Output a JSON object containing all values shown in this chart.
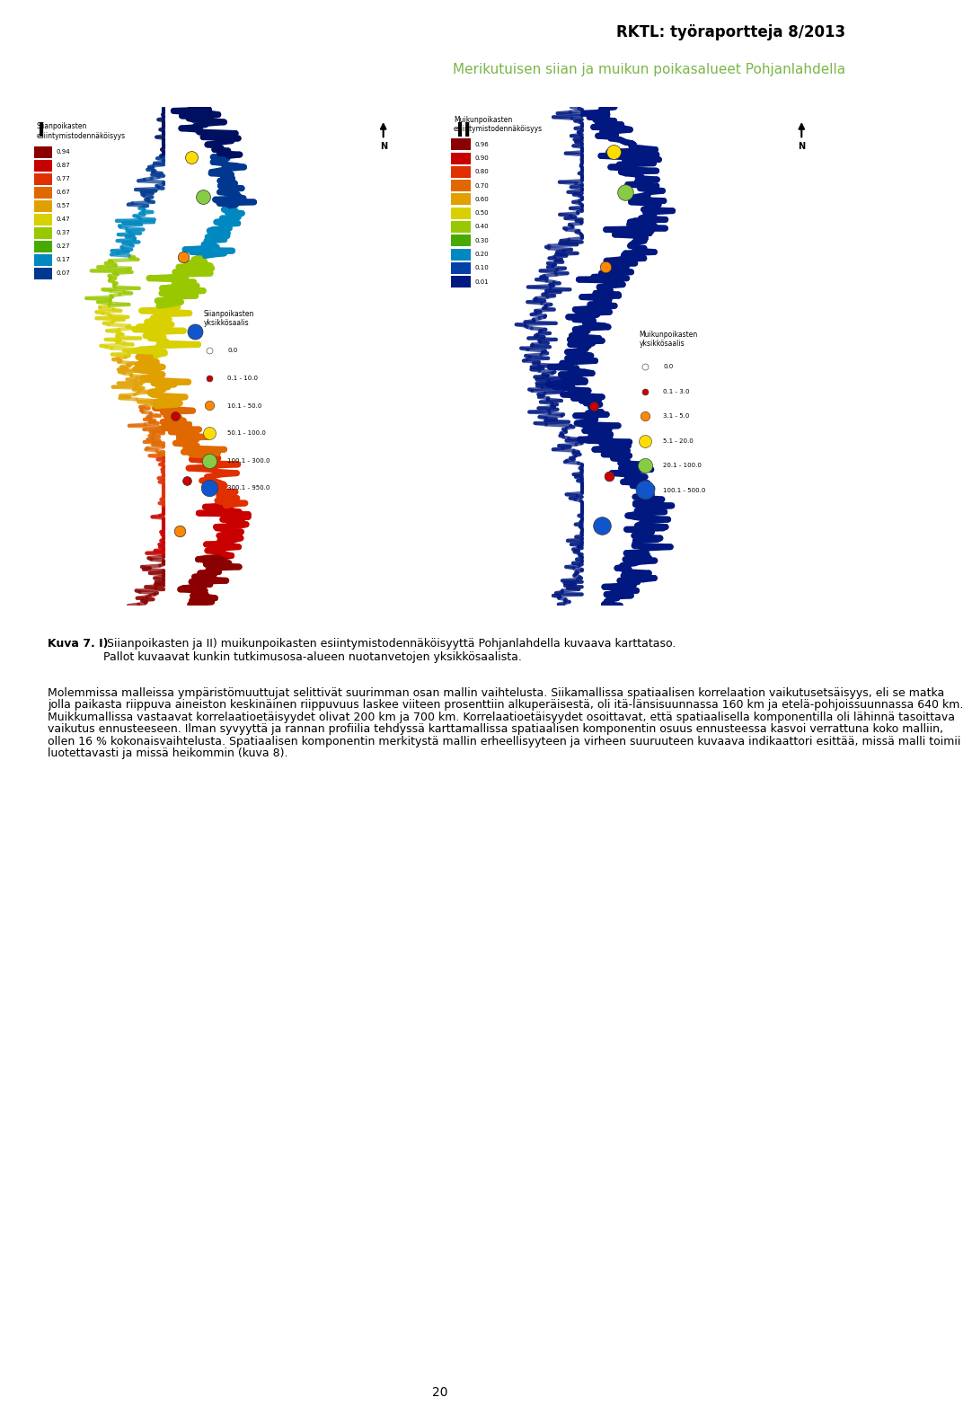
{
  "header_title": "RKTL: työraportteja 8/2013",
  "header_subtitle": "Merikutuisen siian ja muikun poikasalueet Pohjanlahdella",
  "header_title_color": "#000000",
  "header_subtitle_color": "#7ab648",
  "map_label_I": "I",
  "map_label_II": "II",
  "figure_caption_bold": "Kuva 7. I)",
  "figure_caption_rest": " Siianpoikasten ja II) muikunpoikasten esiintymistodennäköisyyttä Pohjanlahdella kuvaava karttataso.\nPallot kuvaavat kunkin tutkimusosa-alueen nuotanvetojen yksikkösaalista.",
  "paragraph1_line1": "Molemmissa malleissa ympäristömuuttujat selittivät suurimman osan mallin vaihtelusta. Siikamallissa spatiaalisen korrelaation vaikutusetsäisyys, eli se matka",
  "paragraph1_line2": "jolla paikasta riippuva aineiston keskinäinen riippuvuus laskee viiteen prosenttiin alkuperäisestä, oli itä-länsisuunnassa 160 km ja etelä-pohjoissuunnassa 640 km.",
  "paragraph1_line3": "Muikkumallissa vastaavat korrelaatioetäisyydet olivat 200 km ja 700 km. Korrelaatioetäisyydet osoittavat, että spatiaalisella komponentilla oli lähinnä tasoittava",
  "paragraph1_line4": "vaikutus ennusteeseen. Ilman syvyyttä ja rannan profiilia tehdyssä karttamallissa spatiaalisen komponentin osuus ennusteessa kasvoi verrattuna koko malliin,",
  "paragraph1_line5": "ollen 16 % kokonaisvaihtelusta. Spatiaalisen komponentin merkitystä mallin erheellisyyteen ja virheen suuruuteen kuvaava indikaattori esittää, missä malli toimii",
  "paragraph1_line6": "luotettavasti ja missä heikommin (kuva 8).",
  "page_number": "20",
  "bg_color": "#ffffff",
  "text_color": "#000000",
  "left_legend_title": "Siianpoikasten\nesiintymistodennäköisyys",
  "left_legend_values": [
    "0.94",
    "0.87",
    "0.77",
    "0.67",
    "0.57",
    "0.47",
    "0.37",
    "0.27",
    "0.17",
    "0.07"
  ],
  "left_legend_colors": [
    "#8b0000",
    "#c80000",
    "#e03000",
    "#e06800",
    "#e0a000",
    "#d8d000",
    "#98c800",
    "#48aa00",
    "#0088c0",
    "#003890"
  ],
  "left_catch_title": "Siianpoikasten\nyksikkösaalis",
  "left_catch_entries": [
    "0.0",
    "0.1 - 10.0",
    "10.1 - 50.0",
    "50.1 - 100.0",
    "100.1 - 300.0",
    "300.1 - 950.0"
  ],
  "left_catch_colors": [
    "#ffffff",
    "#cc0000",
    "#ff8800",
    "#ffdd00",
    "#88cc44",
    "#1155cc"
  ],
  "left_catch_sizes": [
    6,
    6,
    9,
    12,
    14,
    16
  ],
  "right_legend_title": "Muikunpoikasten\nesiintymistodennäköisyys",
  "right_legend_values": [
    "0.96",
    "0.90",
    "0.80",
    "0.70",
    "0.60",
    "0.50",
    "0.40",
    "0.30",
    "0.20",
    "0.10",
    "0.01"
  ],
  "right_legend_colors": [
    "#8b0000",
    "#c80000",
    "#e03000",
    "#e06800",
    "#e0a000",
    "#d8d000",
    "#98c800",
    "#48aa00",
    "#0088c0",
    "#0040a8",
    "#001880"
  ],
  "right_catch_title": "Muikunpoikasten\nyksikkösaalis",
  "right_catch_entries": [
    "0.0",
    "0.1 - 3.0",
    "3.1 - 5.0",
    "5.1 - 20.0",
    "20.1 - 100.0",
    "100.1 - 500.0"
  ],
  "right_catch_colors": [
    "#ffffff",
    "#cc0000",
    "#ff8800",
    "#ffdd00",
    "#88cc44",
    "#1155cc"
  ],
  "right_catch_sizes": [
    6,
    6,
    9,
    12,
    14,
    18
  ]
}
